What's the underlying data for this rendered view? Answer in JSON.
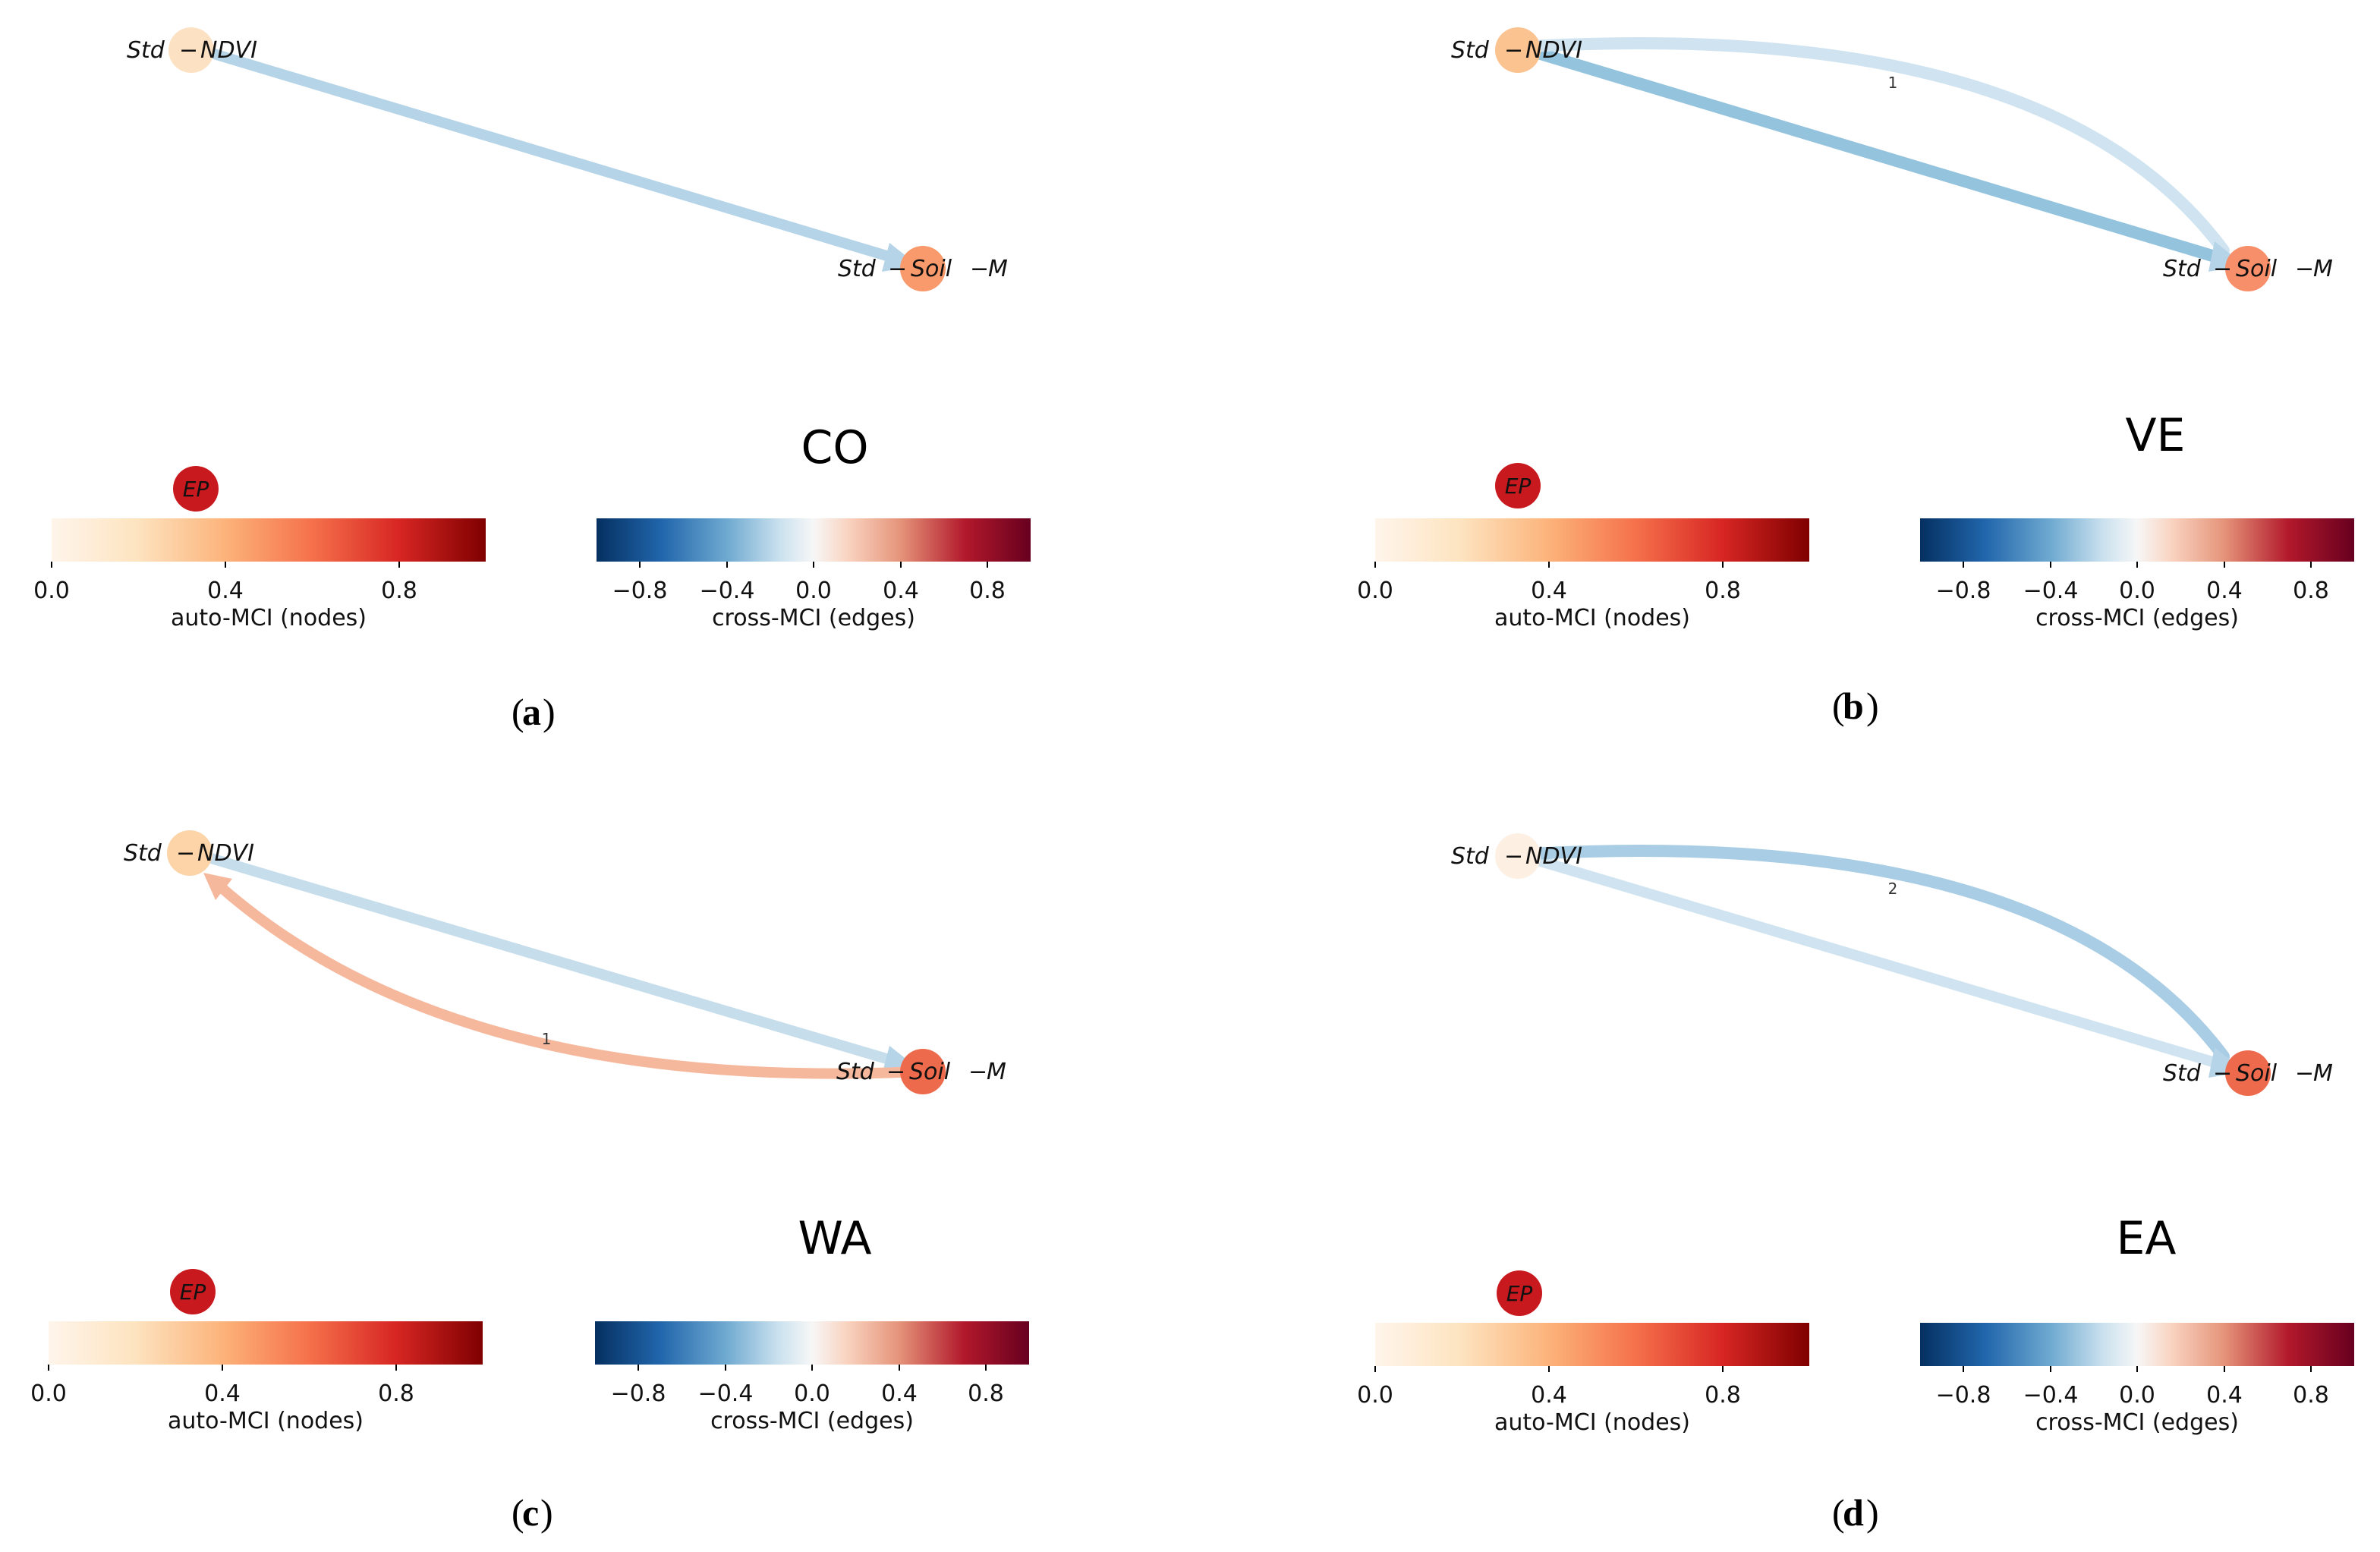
{
  "colors": {
    "node_light": "#fce2c2",
    "node_mid": "#fbc38f",
    "node_orange": "#f89a6c",
    "node_red": "#ee6a4c",
    "node_pale": "#fdf0e2",
    "ep": "#c8191e",
    "edge_blue": "#b5d4e8",
    "edge_blue_dark": "#94c3de",
    "edge_blue_pale": "#cfe3f0",
    "edge_pink": "#f6b89c"
  },
  "autocbar": {
    "label": "auto-MCI (nodes)",
    "ticks": [
      "0.0",
      "0.4",
      "0.8"
    ],
    "range": [
      0,
      1
    ]
  },
  "crosscbar": {
    "label": "cross-MCI (edges)",
    "ticks": [
      "−0.8",
      "−0.4",
      "0.0",
      "0.4",
      "0.8"
    ],
    "range": [
      -1,
      1
    ]
  },
  "panels": [
    {
      "id": "a",
      "caption_letter": "a",
      "region": "CO",
      "ep_label": "EP",
      "nodes": [
        {
          "name": "NDVI",
          "label_left": "Std",
          "label_right": "NDVI",
          "auto_mci": 0.2
        },
        {
          "name": "Soil-M",
          "label_left": "Std",
          "label_mid": "Soil",
          "label_right": "M",
          "auto_mci": 0.45
        }
      ],
      "edges": [
        {
          "from": "NDVI",
          "to": "Soil-M",
          "lag_label": "",
          "cross_mci": -0.25,
          "curved": false
        }
      ]
    },
    {
      "id": "b",
      "caption_letter": "b",
      "region": "VE",
      "ep_label": "EP",
      "nodes": [
        {
          "name": "NDVI",
          "label_left": "Std",
          "label_right": "NDVI",
          "auto_mci": 0.3
        },
        {
          "name": "Soil-M",
          "label_left": "Std",
          "label_mid": "Soil",
          "label_right": "M",
          "auto_mci": 0.5
        }
      ],
      "edges": [
        {
          "from": "NDVI",
          "to": "Soil-M",
          "lag_label": "",
          "cross_mci": -0.35,
          "curved": false
        },
        {
          "from": "NDVI",
          "to": "Soil-M",
          "lag_label": "1",
          "cross_mci": -0.2,
          "curved": true
        }
      ]
    },
    {
      "id": "c",
      "caption_letter": "c",
      "region": "WA",
      "ep_label": "EP",
      "nodes": [
        {
          "name": "NDVI",
          "label_left": "Std",
          "label_right": "NDVI",
          "auto_mci": 0.25
        },
        {
          "name": "Soil-M",
          "label_left": "Std",
          "label_mid": "Soil",
          "label_right": "M",
          "auto_mci": 0.6
        }
      ],
      "edges": [
        {
          "from": "NDVI",
          "to": "Soil-M",
          "lag_label": "",
          "cross_mci": -0.2,
          "curved": false
        },
        {
          "from": "Soil-M",
          "to": "NDVI",
          "lag_label": "1",
          "cross_mci": 0.25,
          "curved": true
        }
      ]
    },
    {
      "id": "d",
      "caption_letter": "d",
      "region": "EA",
      "ep_label": "EP",
      "nodes": [
        {
          "name": "NDVI",
          "label_left": "Std",
          "label_right": "NDVI",
          "auto_mci": 0.05
        },
        {
          "name": "Soil-M",
          "label_left": "Std",
          "label_mid": "Soil",
          "label_right": "M",
          "auto_mci": 0.6
        }
      ],
      "edges": [
        {
          "from": "NDVI",
          "to": "Soil-M",
          "lag_label": "",
          "cross_mci": -0.18,
          "curved": false
        },
        {
          "from": "NDVI",
          "to": "Soil-M",
          "lag_label": "2",
          "cross_mci": -0.3,
          "curved": true
        }
      ]
    }
  ]
}
